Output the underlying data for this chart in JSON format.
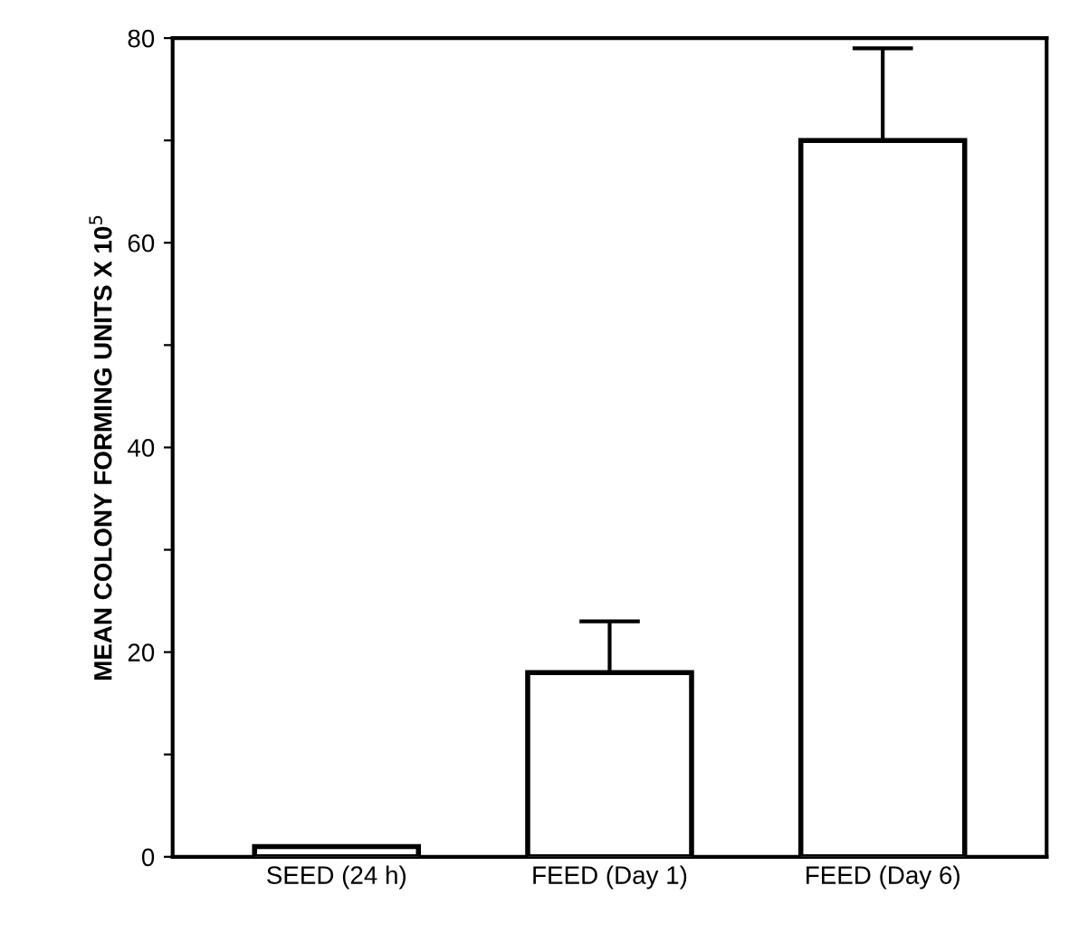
{
  "chart_data": {
    "type": "bar",
    "ylabel": "MEAN COLONY FORMING UNITS X 10$^{5}$",
    "categories": [
      "SEED (24 h)",
      "FEED (Day 1)",
      "FEED (Day 6)"
    ],
    "values": [
      1,
      18,
      70
    ],
    "errors": [
      null,
      5,
      9
    ],
    "color": "#ffffff",
    "ylim": [
      0,
      80
    ],
    "yticks": [
      0,
      {
        "value": 10,
        "label": null
      },
      20,
      {
        "value": 30,
        "label": null
      },
      40,
      {
        "value": 50,
        "label": null
      },
      60,
      {
        "value": 70,
        "label": null
      },
      80
    ],
    "grid": false
  }
}
